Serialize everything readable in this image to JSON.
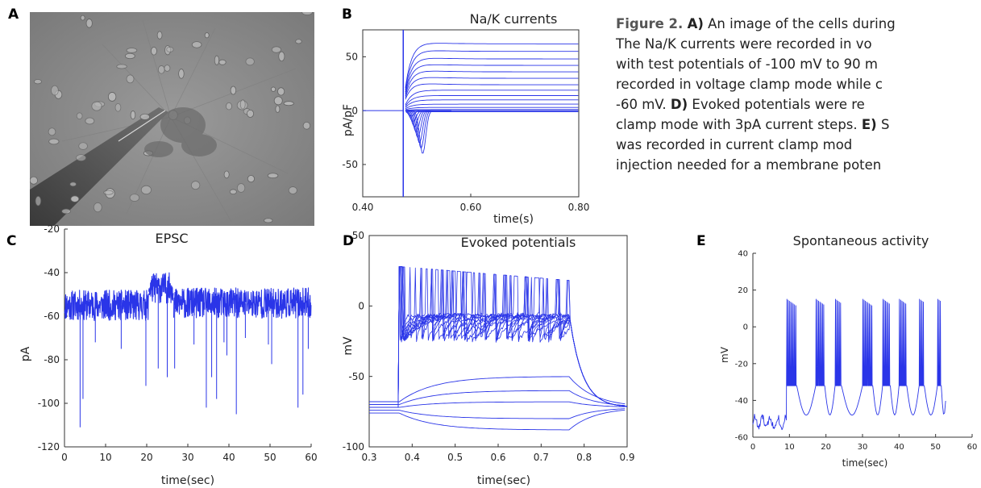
{
  "panel_letters": [
    "A",
    "B",
    "C",
    "D",
    "E"
  ],
  "caption": {
    "label": "Figure 2.",
    "lines": [
      {
        "bold": "A)",
        "text": " An image of the cells during"
      },
      {
        "bold": "",
        "text": "The Na/K currents were recorded in vo"
      },
      {
        "bold": "",
        "text": "with test potentials of -100 mV to 90 m"
      },
      {
        "bold": "",
        "text": "recorded in voltage clamp mode while c"
      },
      {
        "bold": "",
        "text": "-60 mV. ",
        "bold2": "D)",
        "text2": " Evoked potentials were re"
      },
      {
        "bold": "",
        "text": "clamp mode with 3pA current steps. ",
        "bold2": "E)",
        "text2": " S"
      },
      {
        "bold": "",
        "text": "was recorded in current clamp mod"
      },
      {
        "bold": "",
        "text": "injection needed for a membrane poten"
      }
    ]
  },
  "chart_data": [
    {
      "panel": "B",
      "type": "line",
      "title": "Na/K currents",
      "xlabel": "time(s)",
      "ylabel": "pA/pF",
      "xlim": [
        0.4,
        0.8
      ],
      "ylim": [
        -80,
        75
      ],
      "xticks": [
        "0.40",
        "0.60",
        "0.80"
      ],
      "yticks": [
        "50",
        "0",
        "-50"
      ],
      "step_onset_s": 0.475,
      "steady_state_levels_pApF": [
        62,
        55,
        48,
        42,
        36,
        30,
        24,
        19,
        14,
        10,
        6,
        3,
        1,
        0,
        0,
        -1
      ],
      "inward_peaks_pApF": [
        -5,
        -10,
        -15,
        -20,
        -25,
        -30,
        -35,
        -40
      ],
      "color": "#2a35e8"
    },
    {
      "panel": "C",
      "type": "line",
      "title": "EPSC",
      "xlabel": "time(sec)",
      "ylabel": "pA",
      "xlim": [
        0,
        60
      ],
      "ylim": [
        -120,
        -20
      ],
      "xticks": [
        "0",
        "10",
        "20",
        "30",
        "40",
        "50",
        "60"
      ],
      "yticks": [
        "-20",
        "-40",
        "-60",
        "-80",
        "-100",
        "-120"
      ],
      "baseline_segments": [
        {
          "x": [
            0,
            20.5
          ],
          "y": -55
        },
        {
          "x": [
            20.5,
            26.5
          ],
          "y": -47
        },
        {
          "x": [
            26.5,
            60
          ],
          "y": -54
        }
      ],
      "events": [
        {
          "x": 3.8,
          "y": -111
        },
        {
          "x": 4.5,
          "y": -98
        },
        {
          "x": 7.5,
          "y": -72
        },
        {
          "x": 13.8,
          "y": -75
        },
        {
          "x": 19.8,
          "y": -92
        },
        {
          "x": 22.8,
          "y": -84
        },
        {
          "x": 25.0,
          "y": -88
        },
        {
          "x": 26.8,
          "y": -84
        },
        {
          "x": 31.5,
          "y": -73
        },
        {
          "x": 34.5,
          "y": -102
        },
        {
          "x": 35.8,
          "y": -88
        },
        {
          "x": 37.0,
          "y": -98
        },
        {
          "x": 38.8,
          "y": -72
        },
        {
          "x": 39.5,
          "y": -78
        },
        {
          "x": 41.8,
          "y": -105
        },
        {
          "x": 44.0,
          "y": -70
        },
        {
          "x": 49.6,
          "y": -73
        },
        {
          "x": 50.4,
          "y": -82
        },
        {
          "x": 56.8,
          "y": -102
        },
        {
          "x": 58.0,
          "y": -96
        },
        {
          "x": 59.3,
          "y": -75
        }
      ],
      "color": "#2a35e8"
    },
    {
      "panel": "D",
      "type": "line",
      "title": "Evoked potentials",
      "xlabel": "time(sec)",
      "ylabel": "mV",
      "xlim": [
        0.3,
        0.9
      ],
      "ylim": [
        -100,
        50
      ],
      "xticks": [
        "0.3",
        "0.4",
        "0.5",
        "0.6",
        "0.7",
        "0.8",
        "0.9"
      ],
      "yticks": [
        "50",
        "0",
        "-50",
        "-100"
      ],
      "step_on_s": 0.37,
      "step_off_s": 0.765,
      "resting_mV": -72,
      "spike_peak_mV": 28,
      "subthreshold_levels_mV": [
        -88,
        -80,
        -68,
        -60,
        -50
      ],
      "color": "#2a35e8"
    },
    {
      "panel": "E",
      "type": "line",
      "title": "Spontaneous activity",
      "xlabel": "time(sec)",
      "ylabel": "mV",
      "xlim": [
        0,
        60
      ],
      "ylim": [
        -60,
        40
      ],
      "xticks": [
        "0",
        "10",
        "20",
        "30",
        "40",
        "50",
        "60"
      ],
      "yticks": [
        "40",
        "20",
        "0",
        "-20",
        "-40",
        "-60"
      ],
      "bursts": [
        {
          "start": 9.2,
          "spikes": 8
        },
        {
          "start": 17.2,
          "spikes": 7
        },
        {
          "start": 22.5,
          "spikes": 5
        },
        {
          "start": 30.0,
          "spikes": 8
        },
        {
          "start": 35.5,
          "spikes": 6
        },
        {
          "start": 40.0,
          "spikes": 6
        },
        {
          "start": 45.5,
          "spikes": 4
        },
        {
          "start": 50.5,
          "spikes": 3
        }
      ],
      "spike_peak_mV": 15,
      "plateau_mV": -32,
      "trough_mV": -48,
      "color": "#2a35e8"
    }
  ]
}
